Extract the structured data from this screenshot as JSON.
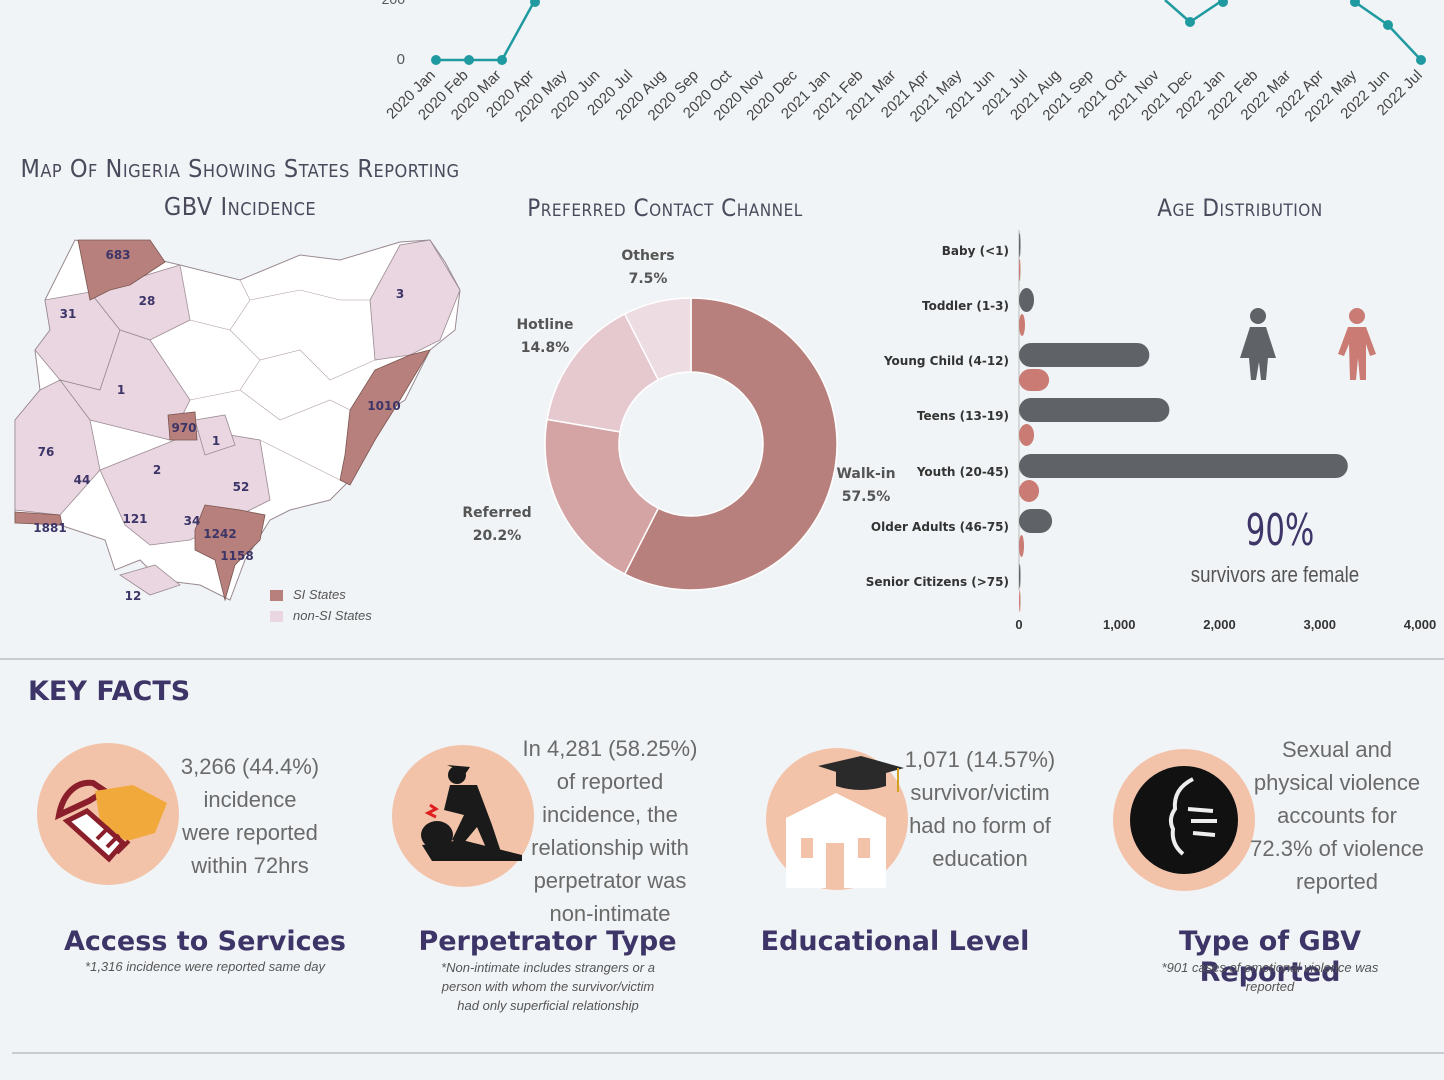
{
  "colors": {
    "teal": "#1f9aa0",
    "rose": "#b8807c",
    "rose_light": "#e9d6e0",
    "grey": "#5f6266",
    "salmon": "#c97b74",
    "peach": "#f2c3a9",
    "navy": "#3d3568"
  },
  "top_chart": {
    "chart_data": {
      "type": "line",
      "x": [
        "2020 Jan",
        "2020 Feb",
        "2020 Mar",
        "2020 Apr",
        "2020 May",
        "2020 Jun",
        "2020 Jul",
        "2020 Aug",
        "2020 Sep",
        "2020 Oct",
        "2020 Nov",
        "2020 Dec",
        "2021 Jan",
        "2021 Feb",
        "2021 Mar",
        "2021 Apr",
        "2021 May",
        "2021 Jun",
        "2021 Jul",
        "2021 Aug",
        "2021 Sep",
        "2021 Oct",
        "2021 Nov",
        "2021 Dec",
        "2022 Jan",
        "2022 Feb",
        "2022 Mar",
        "2022 Apr",
        "2022 May",
        "2022 Jun",
        "2022 Jul"
      ],
      "visible_points": [
        {
          "x": "2020 Jan",
          "y": 0
        },
        {
          "x": "2020 Feb",
          "y": 0
        },
        {
          "x": "2020 Mar",
          "y": 0
        },
        {
          "x": "2020 Apr",
          "y": 200
        },
        {
          "x": "2021 Dec",
          "y": 120
        },
        {
          "x": "2022 Jan",
          "y": 200
        },
        {
          "x": "2022 May",
          "y": 200
        },
        {
          "x": "2022 Jun",
          "y": 100
        },
        {
          "x": "2022 Jul",
          "y": 0
        }
      ],
      "y_ticks": [
        "0",
        "200"
      ]
    }
  },
  "map": {
    "title_line1": "Map Of Nigeria Showing States Reporting",
    "title_line2": "GBV Incidence",
    "labels": [
      "683",
      "28",
      "31",
      "3",
      "1",
      "1010",
      "970",
      "1",
      "76",
      "2",
      "44",
      "52",
      "121",
      "34",
      "1242",
      "1881",
      "1158",
      "12"
    ],
    "legend": [
      "SI States",
      "non-SI States"
    ]
  },
  "contact": {
    "title": "Preferred Contact Channel",
    "chart_data": {
      "type": "pie",
      "slices": [
        {
          "label": "Walk-in",
          "value": 57.5,
          "text": "57.5%"
        },
        {
          "label": "Referred",
          "value": 20.2,
          "text": "20.2%"
        },
        {
          "label": "Hotline",
          "value": 14.8,
          "text": "14.8%"
        },
        {
          "label": "Others",
          "value": 7.5,
          "text": "7.5%"
        }
      ]
    }
  },
  "age": {
    "title": "Age Distribution",
    "chart_data": {
      "type": "bar",
      "categories": [
        "Baby (<1)",
        "Toddler (1-3)",
        "Young Child (4-12)",
        "Teens (13-19)",
        "Youth (20-45)",
        "Older Adults (46-75)",
        "Senior Citizens (>75)"
      ],
      "series": [
        {
          "values": [
            5,
            150,
            1300,
            1500,
            3280,
            330,
            5
          ]
        },
        {
          "values": [
            5,
            60,
            300,
            150,
            200,
            50,
            5
          ]
        }
      ],
      "x_ticks": [
        "0",
        "1,000",
        "2,000",
        "3,000",
        "4,000"
      ],
      "xlim": [
        0,
        4000
      ]
    },
    "stat_value": "90%",
    "stat_text": "survivors are female"
  },
  "key_facts": {
    "heading": "KEY FACTS",
    "facts": [
      {
        "text": [
          "3,266 (44.4%)",
          "incidence",
          "were reported",
          "within 72hrs"
        ],
        "title": "Access to Services",
        "note": [
          "*1,316 incidence were reported same day"
        ]
      },
      {
        "text": [
          "In 4,281 (58.25%)",
          "of reported",
          "incidence, the",
          "relationship with",
          "perpetrator was",
          "non-intimate"
        ],
        "title": "Perpetrator Type",
        "note": [
          "*Non-intimate includes strangers or a",
          "person with whom the survivor/victim",
          "had only superficial relationship"
        ]
      },
      {
        "text": [
          "1,071 (14.57%)",
          "survivor/victim",
          "had no form of",
          "education"
        ],
        "title": "Educational Level",
        "note": []
      },
      {
        "text": [
          "Sexual and",
          "physical violence",
          "accounts for",
          "72.3% of violence",
          "reported"
        ],
        "title": "Type of GBV Reported",
        "note": [
          "*901 cases of emotional violence was",
          "reported"
        ]
      }
    ]
  }
}
